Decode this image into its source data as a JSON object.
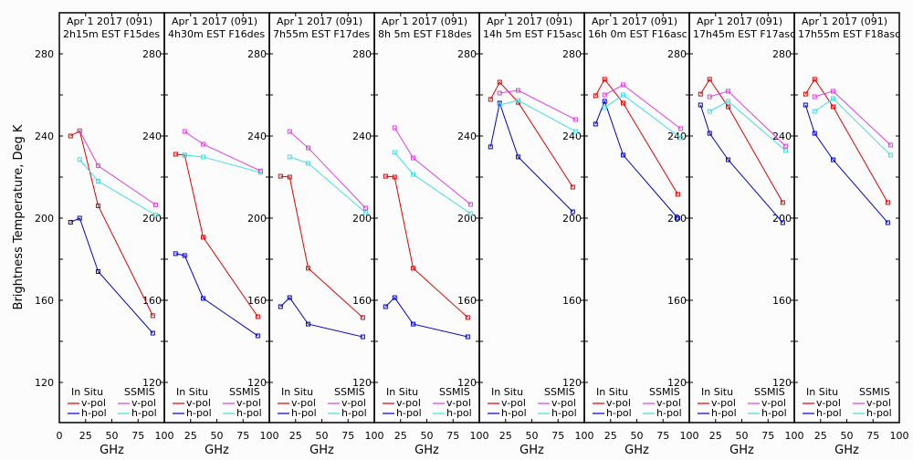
{
  "chart_data": {
    "type": "line",
    "ylabel": "Brightness Temperature, Deg K",
    "xlabel": "GHz",
    "ylim": [
      110,
      290
    ],
    "xlim": [
      0,
      100
    ],
    "yticks": [
      120,
      160,
      200,
      240,
      280
    ],
    "xticks": [
      0,
      25,
      50,
      75,
      100
    ],
    "x_first_tick_labels": [
      "0",
      "25",
      "50",
      "75",
      "100"
    ],
    "x_tick_labels": [
      "",
      "25",
      "50",
      "75",
      "100"
    ],
    "grid": false,
    "legend": {
      "placement": "bottom",
      "groups": [
        {
          "title": "In Situ",
          "entries": [
            {
              "label": "v-pol",
              "color": "#e00000"
            },
            {
              "label": "h-pol",
              "color": "#0000d0"
            }
          ]
        },
        {
          "title": "SSMIS",
          "entries": [
            {
              "label": "v-pol",
              "color": "#e040e0"
            },
            {
              "label": "h-pol",
              "color": "#40e0e0"
            }
          ]
        }
      ]
    },
    "colors": {
      "insitu_v": "#e00000",
      "insitu_h": "#0000d0",
      "ssmis_v": "#e040e0",
      "ssmis_h": "#40e0e0"
    },
    "insitu_freqs": [
      10.7,
      19.35,
      37,
      89
    ],
    "ssmis_freqs": [
      19.35,
      37,
      91.655
    ],
    "panels": [
      {
        "title_line1": "Apr 1 2017 (091)",
        "title_line2": "2h15m EST F15des",
        "insitu_v": [
          240.0,
          242.5,
          206.0,
          152.5
        ],
        "insitu_h": [
          198.0,
          200.0,
          174.0,
          144.0
        ],
        "ssmis_v": [
          242.5,
          225.5,
          206.5
        ],
        "ssmis_h": [
          228.5,
          218.0,
          201.5
        ]
      },
      {
        "title_line1": "Apr 1 2017 (091)",
        "title_line2": "4h30m EST F16des",
        "insitu_v": [
          231.1,
          230.7,
          190.7,
          152.0
        ],
        "insitu_h": [
          182.7,
          181.8,
          160.9,
          142.7
        ],
        "ssmis_v": [
          242.2,
          236.0,
          223.0
        ],
        "ssmis_h": [
          230.7,
          229.8,
          222.2
        ]
      },
      {
        "title_line1": "Apr 1 2017 (091)",
        "title_line2": "7h55m EST F17des",
        "insitu_v": [
          220.4,
          220.0,
          175.6,
          151.6
        ],
        "insitu_h": [
          156.9,
          161.3,
          148.4,
          142.2
        ],
        "ssmis_v": [
          242.2,
          234.2,
          204.9
        ],
        "ssmis_h": [
          229.8,
          226.7,
          202.7
        ]
      },
      {
        "title_line1": "Apr 1 2017 (091)",
        "title_line2": "8h 5m EST F18des",
        "insitu_v": [
          220.4,
          220.0,
          175.6,
          151.6
        ],
        "insitu_h": [
          156.9,
          161.3,
          148.4,
          142.2
        ],
        "ssmis_v": [
          244.0,
          229.3,
          206.7
        ],
        "ssmis_h": [
          232.0,
          221.3,
          202.2
        ]
      },
      {
        "title_line1": "Apr 1 2017 (091)",
        "title_line2": "14h 5m EST F15asc",
        "insitu_v": [
          257.8,
          266.2,
          256.4,
          215.1
        ],
        "insitu_h": [
          234.7,
          256.0,
          229.8,
          203.1
        ],
        "ssmis_v": [
          260.9,
          262.2,
          248.0
        ],
        "ssmis_h": [
          255.1,
          257.3,
          242.2
        ]
      },
      {
        "title_line1": "Apr 1 2017 (091)",
        "title_line2": "16h 0m EST F16asc",
        "insitu_v": [
          259.6,
          267.6,
          256.0,
          211.6
        ],
        "insitu_h": [
          245.8,
          256.9,
          230.7,
          200.0
        ],
        "ssmis_v": [
          260.0,
          264.9,
          243.6
        ],
        "ssmis_h": [
          253.8,
          260.0,
          239.1
        ]
      },
      {
        "title_line1": "Apr 1 2017 (091)",
        "title_line2": "17h45m EST F17asc",
        "insitu_v": [
          260.4,
          267.6,
          254.2,
          207.6
        ],
        "insitu_h": [
          255.1,
          241.3,
          228.4,
          197.8
        ],
        "ssmis_v": [
          259.1,
          261.8,
          235.1
        ],
        "ssmis_h": [
          252.0,
          256.9,
          232.9
        ]
      },
      {
        "title_line1": "Apr 1 2017 (091)",
        "title_line2": "17h55m EST F18asc",
        "insitu_v": [
          260.4,
          267.6,
          254.2,
          207.6
        ],
        "insitu_h": [
          255.1,
          241.3,
          228.4,
          197.8
        ],
        "ssmis_v": [
          259.1,
          261.8,
          235.6
        ],
        "ssmis_h": [
          252.0,
          258.2,
          230.7
        ]
      }
    ]
  }
}
